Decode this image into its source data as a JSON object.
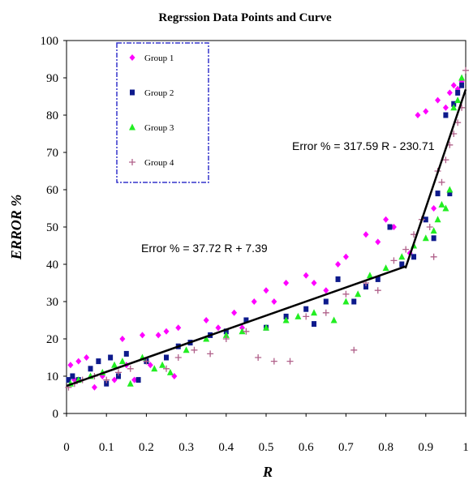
{
  "chart_data": {
    "type": "scatter",
    "title": "Regrssion Data Points and Curve",
    "xlabel": "R",
    "ylabel": "ERROR %",
    "xlim": [
      0,
      1
    ],
    "ylim": [
      0,
      100
    ],
    "xticks": [
      "0",
      "0.1",
      "0.2",
      "0.3",
      "0.4",
      "0.5",
      "0.6",
      "0.7",
      "0.8",
      "0.9",
      "1"
    ],
    "yticks": [
      "0",
      "10",
      "20",
      "30",
      "40",
      "50",
      "60",
      "70",
      "80",
      "90",
      "100"
    ],
    "grid": false,
    "legend_position": "top-left",
    "series": [
      {
        "name": "Group 1",
        "color": "#ff00ff",
        "marker": "diamond",
        "points": [
          [
            0.01,
            13
          ],
          [
            0.02,
            9
          ],
          [
            0.03,
            14
          ],
          [
            0.05,
            15
          ],
          [
            0.07,
            7
          ],
          [
            0.09,
            10
          ],
          [
            0.12,
            9
          ],
          [
            0.14,
            20
          ],
          [
            0.15,
            13
          ],
          [
            0.17,
            9
          ],
          [
            0.19,
            21
          ],
          [
            0.21,
            13
          ],
          [
            0.23,
            21
          ],
          [
            0.25,
            22
          ],
          [
            0.27,
            10
          ],
          [
            0.28,
            23
          ],
          [
            0.35,
            25
          ],
          [
            0.38,
            23
          ],
          [
            0.42,
            27
          ],
          [
            0.44,
            23
          ],
          [
            0.47,
            30
          ],
          [
            0.5,
            33
          ],
          [
            0.52,
            30
          ],
          [
            0.55,
            35
          ],
          [
            0.6,
            37
          ],
          [
            0.62,
            35
          ],
          [
            0.65,
            33
          ],
          [
            0.68,
            40
          ],
          [
            0.7,
            42
          ],
          [
            0.75,
            48
          ],
          [
            0.78,
            46
          ],
          [
            0.8,
            52
          ],
          [
            0.82,
            50
          ],
          [
            0.86,
            43
          ],
          [
            0.88,
            80
          ],
          [
            0.9,
            81
          ],
          [
            0.92,
            55
          ],
          [
            0.93,
            84
          ],
          [
            0.95,
            82
          ],
          [
            0.96,
            86
          ],
          [
            0.97,
            88
          ],
          [
            0.98,
            87
          ],
          [
            0.99,
            89
          ]
        ]
      },
      {
        "name": "Group 2",
        "color": "#0d1a8c",
        "marker": "square",
        "points": [
          [
            0.005,
            9
          ],
          [
            0.015,
            10
          ],
          [
            0.03,
            9
          ],
          [
            0.06,
            12
          ],
          [
            0.08,
            14
          ],
          [
            0.1,
            8
          ],
          [
            0.11,
            15
          ],
          [
            0.13,
            10
          ],
          [
            0.15,
            16
          ],
          [
            0.18,
            9
          ],
          [
            0.2,
            14
          ],
          [
            0.25,
            15
          ],
          [
            0.28,
            18
          ],
          [
            0.31,
            19
          ],
          [
            0.36,
            21
          ],
          [
            0.4,
            22
          ],
          [
            0.45,
            25
          ],
          [
            0.5,
            23
          ],
          [
            0.55,
            26
          ],
          [
            0.6,
            28
          ],
          [
            0.62,
            24
          ],
          [
            0.65,
            30
          ],
          [
            0.68,
            36
          ],
          [
            0.72,
            30
          ],
          [
            0.75,
            34
          ],
          [
            0.78,
            36
          ],
          [
            0.81,
            50
          ],
          [
            0.84,
            40
          ],
          [
            0.87,
            42
          ],
          [
            0.9,
            52
          ],
          [
            0.92,
            47
          ],
          [
            0.93,
            59
          ],
          [
            0.95,
            80
          ],
          [
            0.96,
            59
          ],
          [
            0.97,
            83
          ],
          [
            0.98,
            86
          ],
          [
            0.99,
            88
          ]
        ]
      },
      {
        "name": "Group 3",
        "color": "#22ee22",
        "marker": "triangle",
        "points": [
          [
            0.01,
            8
          ],
          [
            0.03,
            9
          ],
          [
            0.06,
            10
          ],
          [
            0.09,
            11
          ],
          [
            0.12,
            13
          ],
          [
            0.14,
            14
          ],
          [
            0.16,
            8
          ],
          [
            0.19,
            15
          ],
          [
            0.22,
            12
          ],
          [
            0.24,
            13
          ],
          [
            0.26,
            11
          ],
          [
            0.3,
            17
          ],
          [
            0.35,
            20
          ],
          [
            0.4,
            21
          ],
          [
            0.44,
            22
          ],
          [
            0.5,
            23
          ],
          [
            0.55,
            25
          ],
          [
            0.58,
            26
          ],
          [
            0.62,
            27
          ],
          [
            0.67,
            25
          ],
          [
            0.7,
            30
          ],
          [
            0.73,
            32
          ],
          [
            0.76,
            37
          ],
          [
            0.8,
            39
          ],
          [
            0.84,
            42
          ],
          [
            0.87,
            45
          ],
          [
            0.9,
            47
          ],
          [
            0.92,
            49
          ],
          [
            0.93,
            52
          ],
          [
            0.94,
            56
          ],
          [
            0.95,
            55
          ],
          [
            0.96,
            60
          ],
          [
            0.97,
            82
          ],
          [
            0.98,
            84
          ],
          [
            0.99,
            90
          ]
        ]
      },
      {
        "name": "Group 4",
        "color": "#b0608a",
        "marker": "plus",
        "points": [
          [
            0.005,
            7
          ],
          [
            0.02,
            8
          ],
          [
            0.04,
            9
          ],
          [
            0.07,
            10
          ],
          [
            0.1,
            9
          ],
          [
            0.13,
            11
          ],
          [
            0.16,
            12
          ],
          [
            0.2,
            14
          ],
          [
            0.25,
            12
          ],
          [
            0.28,
            15
          ],
          [
            0.32,
            17
          ],
          [
            0.36,
            16
          ],
          [
            0.4,
            20
          ],
          [
            0.45,
            22
          ],
          [
            0.48,
            15
          ],
          [
            0.52,
            14
          ],
          [
            0.56,
            14
          ],
          [
            0.6,
            26
          ],
          [
            0.65,
            27
          ],
          [
            0.7,
            32
          ],
          [
            0.72,
            17
          ],
          [
            0.75,
            35
          ],
          [
            0.78,
            33
          ],
          [
            0.82,
            41
          ],
          [
            0.85,
            44
          ],
          [
            0.87,
            48
          ],
          [
            0.89,
            52
          ],
          [
            0.91,
            50
          ],
          [
            0.92,
            42
          ],
          [
            0.93,
            65
          ],
          [
            0.94,
            62
          ],
          [
            0.95,
            68
          ],
          [
            0.96,
            72
          ],
          [
            0.97,
            75
          ],
          [
            0.98,
            78
          ],
          [
            0.99,
            82
          ],
          [
            1.0,
            92
          ]
        ]
      }
    ],
    "fit_lines": [
      {
        "label": "Error % = 37.72 R + 7.39",
        "slope": 37.72,
        "intercept": 7.39,
        "x": [
          0,
          0.849
        ]
      },
      {
        "label": "Error % = 317.59 R - 230.71",
        "slope": 317.59,
        "intercept": -230.71,
        "x": [
          0.849,
          1.0
        ]
      }
    ]
  }
}
